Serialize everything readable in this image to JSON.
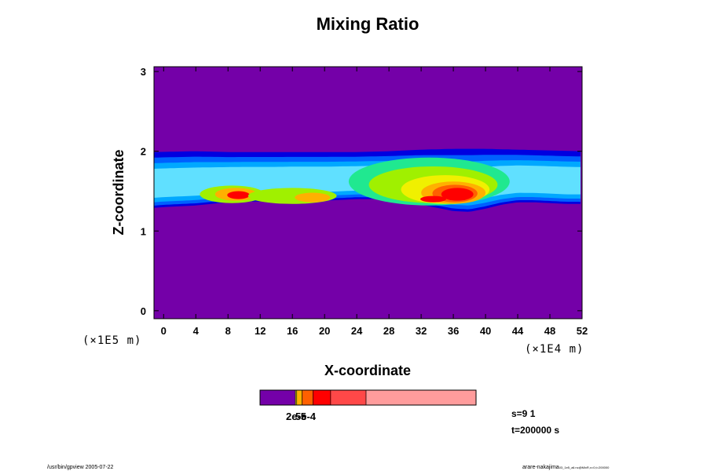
{
  "chart_data": {
    "type": "heatmap",
    "title": "Mixing Ratio",
    "xlabel": "X-coordinate",
    "ylabel": "Z-coordinate",
    "x_scale_note": "(×1E4 m)",
    "y_scale_note": "(×1E5 m)",
    "xlim": [
      -1.2,
      52
    ],
    "ylim": [
      -0.1,
      3.06
    ],
    "x_ticks": [
      0,
      4,
      8,
      12,
      16,
      20,
      24,
      28,
      32,
      36,
      40,
      44,
      48,
      52
    ],
    "x_tick_labels": [
      "0",
      "4",
      "8",
      "12",
      "16",
      "20",
      "24",
      "28",
      "32",
      "36",
      "40",
      "44",
      "48",
      "52"
    ],
    "y_ticks": [
      0,
      1,
      2,
      3
    ],
    "y_tick_labels": [
      "0",
      "1",
      "2",
      "3"
    ],
    "background_color": "#7400a8",
    "colors": [
      "#7400a8",
      "#0000e0",
      "#0060ff",
      "#00a8ff",
      "#60e0ff",
      "#20e890",
      "#30e020",
      "#a0f000",
      "#f0f000",
      "#ffb000",
      "#ff6000",
      "#ff0000",
      "#ff4848",
      "#ff9c9c"
    ],
    "field": {
      "band_bottom": [
        [
          -1.2,
          1.29
        ],
        [
          0,
          1.3
        ],
        [
          2,
          1.31
        ],
        [
          4,
          1.32
        ],
        [
          6,
          1.34
        ],
        [
          8,
          1.36
        ],
        [
          10,
          1.37
        ],
        [
          12,
          1.37
        ],
        [
          14,
          1.37
        ],
        [
          16,
          1.38
        ],
        [
          18,
          1.38
        ],
        [
          20,
          1.38
        ],
        [
          22,
          1.39
        ],
        [
          24,
          1.4
        ],
        [
          26,
          1.4
        ],
        [
          28,
          1.39
        ],
        [
          30,
          1.37
        ],
        [
          32,
          1.33
        ],
        [
          34,
          1.29
        ],
        [
          36,
          1.25
        ],
        [
          38,
          1.24
        ],
        [
          40,
          1.28
        ],
        [
          42,
          1.33
        ],
        [
          44,
          1.36
        ],
        [
          46,
          1.36
        ],
        [
          48,
          1.35
        ],
        [
          50,
          1.34
        ],
        [
          52,
          1.34
        ]
      ],
      "band_top": [
        [
          -1.2,
          1.99
        ],
        [
          4,
          2.0
        ],
        [
          8,
          1.99
        ],
        [
          12,
          1.99
        ],
        [
          16,
          1.99
        ],
        [
          20,
          1.99
        ],
        [
          24,
          1.99
        ],
        [
          28,
          2.0
        ],
        [
          32,
          2.02
        ],
        [
          36,
          2.03
        ],
        [
          40,
          2.03
        ],
        [
          44,
          2.02
        ],
        [
          48,
          2.01
        ],
        [
          52,
          2.0
        ]
      ],
      "blobs": [
        {
          "x": 8.5,
          "z": 1.46,
          "rx": 4.0,
          "rz": 0.11,
          "level": 7
        },
        {
          "x": 9.0,
          "z": 1.46,
          "rx": 2.6,
          "rz": 0.08,
          "level": 9
        },
        {
          "x": 9.3,
          "z": 1.45,
          "rx": 1.4,
          "rz": 0.05,
          "level": 11
        },
        {
          "x": 16.0,
          "z": 1.44,
          "rx": 5.5,
          "rz": 0.1,
          "level": 7
        },
        {
          "x": 18.5,
          "z": 1.42,
          "rx": 2.2,
          "rz": 0.06,
          "level": 9
        },
        {
          "x": 33.0,
          "z": 1.62,
          "rx": 10.0,
          "rz": 0.3,
          "level": 5
        },
        {
          "x": 33.5,
          "z": 1.58,
          "rx": 8.0,
          "rz": 0.23,
          "level": 7
        },
        {
          "x": 35.0,
          "z": 1.52,
          "rx": 5.5,
          "rz": 0.18,
          "level": 8
        },
        {
          "x": 36.0,
          "z": 1.48,
          "rx": 4.0,
          "rz": 0.14,
          "level": 9
        },
        {
          "x": 36.2,
          "z": 1.47,
          "rx": 2.8,
          "rz": 0.11,
          "level": 10
        },
        {
          "x": 36.5,
          "z": 1.46,
          "rx": 2.0,
          "rz": 0.08,
          "level": 11
        },
        {
          "x": 33.5,
          "z": 1.4,
          "rx": 1.6,
          "rz": 0.04,
          "level": 11
        }
      ]
    },
    "colorbar": {
      "label": "2e-5",
      "label_overlay": "5e-4",
      "segments": [
        {
          "from": 0,
          "to": 0.164,
          "color": "#7400a8"
        },
        {
          "from": 0.164,
          "to": 0.17,
          "color": "#f0f000"
        },
        {
          "from": 0.17,
          "to": 0.195,
          "color": "#ffb000"
        },
        {
          "from": 0.195,
          "to": 0.245,
          "color": "#ff6000"
        },
        {
          "from": 0.245,
          "to": 0.327,
          "color": "#ff0000"
        },
        {
          "from": 0.327,
          "to": 0.491,
          "color": "#ff4848"
        },
        {
          "from": 0.491,
          "to": 1.0,
          "color": "#ff9c9c"
        }
      ]
    }
  },
  "info": {
    "s_value": "s=9 1",
    "t_value": "t=200000 s"
  },
  "footer": {
    "left": "/usr/bin/gpview 2005-07-22",
    "right": "arare-nakajima",
    "right_small": "03_1e5_all.nc@MixR,x=0,t=200000"
  }
}
